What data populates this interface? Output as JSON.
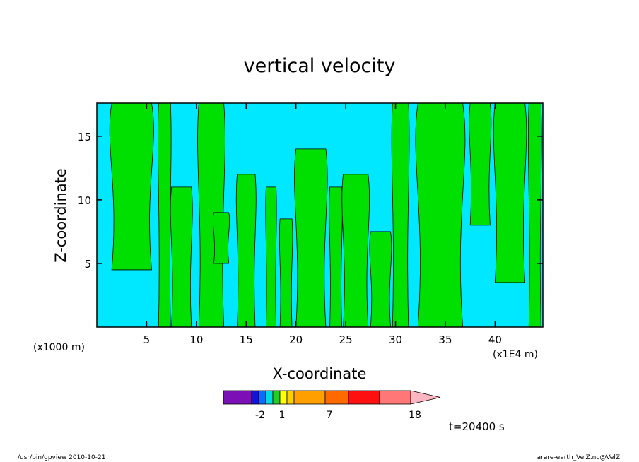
{
  "chart_data": {
    "type": "heatmap",
    "title": "vertical velocity",
    "xlabel": "X-coordinate",
    "ylabel": "Z-coordinate",
    "x_unit": "(x1000 m)",
    "x_unit_right": "(x1E4 m)",
    "xlim": [
      0,
      44.8
    ],
    "ylim": [
      0,
      17.6
    ],
    "x_ticks": [
      5,
      10,
      15,
      20,
      25,
      30,
      35,
      40
    ],
    "y_ticks": [
      5,
      10,
      15
    ],
    "colorbar": {
      "colors": [
        "#7a10b5",
        "#1414d2",
        "#0a6cff",
        "#00d8e6",
        "#20d020",
        "#ffff00",
        "#ffd000",
        "#ffa000",
        "#ff6a00",
        "#ff1010",
        "#ff7777",
        "#ffb6c1"
      ],
      "tick_labels": [
        "-2",
        "1",
        "7",
        "18"
      ]
    },
    "field_colors": {
      "negative": "#00e8ff",
      "positive": "#00e000",
      "contour": "#000000"
    },
    "updraft_columns": [
      {
        "x": 3.5,
        "width": 4.0,
        "ztop": 17.6,
        "zbot": 4.5
      },
      {
        "x": 6.8,
        "width": 1.2,
        "ztop": 17.6,
        "zbot": 0
      },
      {
        "x": 8.5,
        "width": 2.0,
        "ztop": 11.0,
        "zbot": 0
      },
      {
        "x": 11.5,
        "width": 2.5,
        "ztop": 17.6,
        "zbot": 0
      },
      {
        "x": 12.5,
        "width": 1.5,
        "ztop": 9.0,
        "zbot": 5.0
      },
      {
        "x": 15.0,
        "width": 1.8,
        "ztop": 12.0,
        "zbot": 0
      },
      {
        "x": 17.5,
        "width": 1.0,
        "ztop": 11.0,
        "zbot": 0
      },
      {
        "x": 19.0,
        "width": 1.2,
        "ztop": 8.5,
        "zbot": 0
      },
      {
        "x": 21.5,
        "width": 3.0,
        "ztop": 14.0,
        "zbot": 0
      },
      {
        "x": 24.0,
        "width": 1.2,
        "ztop": 11.0,
        "zbot": 0
      },
      {
        "x": 26.0,
        "width": 2.5,
        "ztop": 12.0,
        "zbot": 0
      },
      {
        "x": 28.5,
        "width": 2.0,
        "ztop": 7.5,
        "zbot": 0
      },
      {
        "x": 30.5,
        "width": 1.6,
        "ztop": 17.6,
        "zbot": 0
      },
      {
        "x": 34.5,
        "width": 4.5,
        "ztop": 17.6,
        "zbot": 0
      },
      {
        "x": 38.5,
        "width": 2.0,
        "ztop": 17.6,
        "zbot": 8.0
      },
      {
        "x": 41.5,
        "width": 3.0,
        "ztop": 17.6,
        "zbot": 3.5
      },
      {
        "x": 44.0,
        "width": 1.2,
        "ztop": 17.6,
        "zbot": 0
      }
    ]
  },
  "time_label": "t=20400 s",
  "footer": {
    "left": "/usr/bin/gpview   2010-10-21",
    "right": "arare-earth_VelZ.nc@VelZ"
  }
}
